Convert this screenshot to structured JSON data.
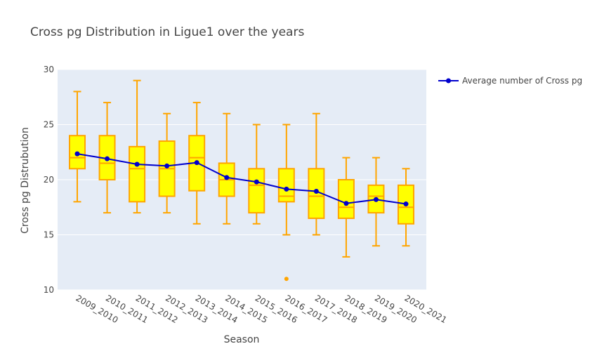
{
  "chart_data": {
    "type": "box",
    "title": "Cross pg Distribution in Ligue1 over the years",
    "xlabel": "Season",
    "ylabel": "Cross pg Distrubution",
    "ylim": [
      10,
      30
    ],
    "yticks": [
      10,
      15,
      20,
      25,
      30
    ],
    "grid": true,
    "legend_position": "top-right",
    "colors": {
      "box_fill": "#ffff00",
      "box_line": "#ffa500",
      "line": "#0000cd",
      "plot_bg": "#e5ecf6"
    },
    "categories": [
      "2009_2010",
      "2010_2011",
      "2011_2012",
      "2012_2013",
      "2013_2014",
      "2014_2015",
      "2015_2016",
      "2016_2017",
      "2017_2018",
      "2018_2019",
      "2019_2020",
      "2020_2021"
    ],
    "boxes": [
      {
        "min": 18,
        "q1": 21,
        "median": 22,
        "q3": 24,
        "max": 28,
        "outliers": []
      },
      {
        "min": 17,
        "q1": 20,
        "median": 21.5,
        "q3": 24,
        "max": 27,
        "outliers": []
      },
      {
        "min": 17,
        "q1": 18,
        "median": 21,
        "q3": 23,
        "max": 29,
        "outliers": []
      },
      {
        "min": 17,
        "q1": 18.5,
        "median": 21,
        "q3": 23.5,
        "max": 26,
        "outliers": []
      },
      {
        "min": 16,
        "q1": 19,
        "median": 22,
        "q3": 24,
        "max": 27,
        "outliers": []
      },
      {
        "min": 16,
        "q1": 18.5,
        "median": 20,
        "q3": 21.5,
        "max": 26,
        "outliers": []
      },
      {
        "min": 16,
        "q1": 17,
        "median": 19.5,
        "q3": 21,
        "max": 25,
        "outliers": []
      },
      {
        "min": 15,
        "q1": 18,
        "median": 18.5,
        "q3": 21,
        "max": 25,
        "outliers": [
          11
        ]
      },
      {
        "min": 15,
        "q1": 16.5,
        "median": 18.5,
        "q3": 21,
        "max": 26,
        "outliers": []
      },
      {
        "min": 13,
        "q1": 16.5,
        "median": 17.5,
        "q3": 20,
        "max": 22,
        "outliers": []
      },
      {
        "min": 14,
        "q1": 17,
        "median": 18.5,
        "q3": 19.5,
        "max": 22,
        "outliers": []
      },
      {
        "min": 14,
        "q1": 16,
        "median": 17.5,
        "q3": 19.5,
        "max": 21,
        "outliers": []
      }
    ],
    "series": [
      {
        "name": "Average number of Cross pg",
        "type": "line",
        "values": [
          22.35,
          21.9,
          21.4,
          21.25,
          21.55,
          20.2,
          19.8,
          19.15,
          18.95,
          17.85,
          18.2,
          17.8
        ]
      }
    ]
  }
}
